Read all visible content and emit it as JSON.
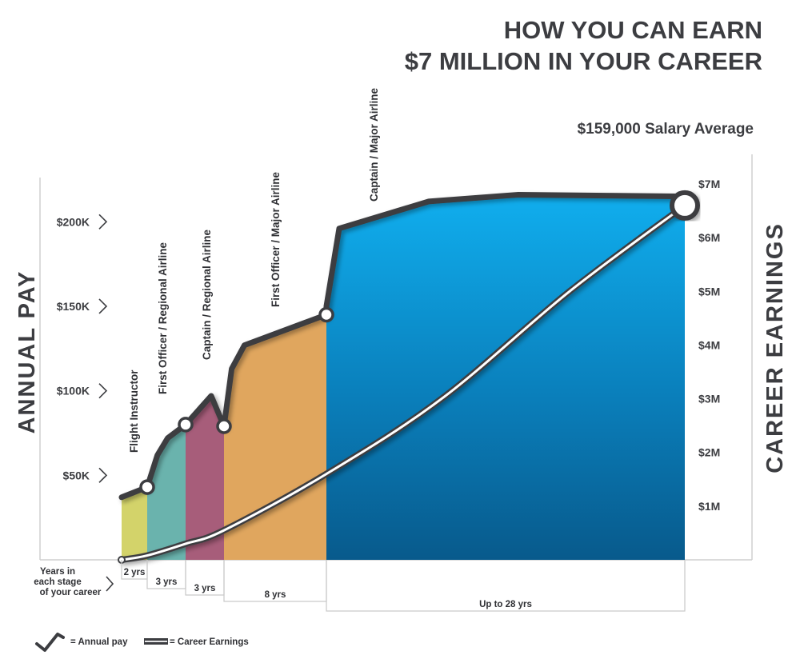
{
  "chart_data": {
    "type": "area",
    "title_lines": [
      "HOW YOU CAN EARN",
      "$7 MILLION IN YOUR CAREER"
    ],
    "subtitle": "$159,000 Salary Average",
    "y_left": {
      "label": "ANNUAL PAY",
      "ticks": [
        {
          "value": 50000,
          "label": "$50K"
        },
        {
          "value": 100000,
          "label": "$100K"
        },
        {
          "value": 150000,
          "label": "$150K"
        },
        {
          "value": 200000,
          "label": "$200K"
        }
      ],
      "ylim": [
        0,
        220000
      ]
    },
    "y_right": {
      "label": "CAREER EARNINGS",
      "ticks": [
        {
          "value": 1,
          "label": "$1M"
        },
        {
          "value": 2,
          "label": "$2M"
        },
        {
          "value": 3,
          "label": "$3M"
        },
        {
          "value": 4,
          "label": "$4M"
        },
        {
          "value": 5,
          "label": "$5M"
        },
        {
          "value": 6,
          "label": "$6M"
        },
        {
          "value": 7,
          "label": "$7M"
        }
      ],
      "ylim": [
        0,
        7.15
      ]
    },
    "years_note": [
      "Years in",
      "each stage",
      "of your career"
    ],
    "stages": [
      {
        "name": "Flight Instructor",
        "duration": "2 yrs",
        "color": "#d3d36a",
        "pay": [
          [
            0,
            37000
          ],
          [
            2,
            43000
          ]
        ]
      },
      {
        "name": "First Officer / Regional Airline",
        "duration": "3 yrs",
        "color": "#6ab3ad",
        "pay": [
          [
            2,
            43000
          ],
          [
            2.8,
            62000
          ],
          [
            3.6,
            72000
          ],
          [
            5,
            80000
          ]
        ]
      },
      {
        "name": "Captain / Regional Airline",
        "duration": "3 yrs",
        "color": "#a75d7a",
        "pay": [
          [
            5,
            80000
          ],
          [
            7,
            97000
          ],
          [
            8,
            79000
          ]
        ]
      },
      {
        "name": "First Officer / Major Airline",
        "duration": "8 yrs",
        "color": "#e0a65e",
        "pay": [
          [
            8,
            79000
          ],
          [
            8.6,
            113000
          ],
          [
            9.6,
            127000
          ],
          [
            16,
            145000
          ]
        ]
      },
      {
        "name": "Captain / Major Airline",
        "duration": "Up to 28 yrs",
        "color": "#0a8fd0",
        "pay": [
          [
            16,
            150000
          ],
          [
            17,
            196000
          ],
          [
            24,
            212000
          ],
          [
            31,
            216000
          ],
          [
            44,
            215000
          ]
        ]
      }
    ],
    "career_earnings": [
      {
        "year": 0,
        "value": 0
      },
      {
        "year": 2,
        "value": 0.08
      },
      {
        "year": 5,
        "value": 0.3
      },
      {
        "year": 8,
        "value": 0.55
      },
      {
        "year": 16,
        "value": 1.6
      },
      {
        "year": 25,
        "value": 3.0
      },
      {
        "year": 35,
        "value": 5.0
      },
      {
        "year": 44,
        "value": 6.6
      }
    ],
    "legend": [
      {
        "symbol": "check",
        "label": "= Annual pay"
      },
      {
        "symbol": "double-line",
        "label": "= Career Earnings"
      }
    ]
  }
}
